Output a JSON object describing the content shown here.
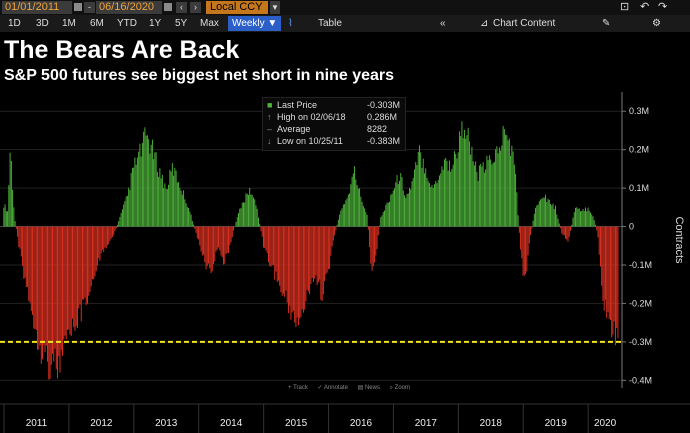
{
  "toolbar": {
    "start_date": "01/01/2011",
    "end_date": "06/16/2020",
    "currency": "Local CCY",
    "timeframes": [
      "1D",
      "3D",
      "1M",
      "6M",
      "YTD",
      "1Y",
      "5Y",
      "Max"
    ],
    "frequency": "Weekly ▼",
    "table_label": "Table",
    "chart_content_label": "Chart Content"
  },
  "header": {
    "title": "The Bears Are Back",
    "subtitle": "S&P 500 futures see biggest net short in nine years"
  },
  "legend": {
    "rows": [
      {
        "label": "Last Price",
        "value": "-0.303M"
      },
      {
        "label": "High on 02/06/18",
        "value": "0.286M"
      },
      {
        "label": "Average",
        "value": "8282"
      },
      {
        "label": "Low on 10/25/11",
        "value": "-0.383M"
      }
    ]
  },
  "controls": [
    "Track",
    "Annotate",
    "News",
    "Zoom"
  ],
  "chart_data": {
    "type": "bar",
    "ylabel": "Contracts",
    "ylim": [
      -0.42,
      0.35
    ],
    "yunit": "M",
    "ytick_labels": [
      "0.3M",
      "0.2M",
      "0.1M",
      "0",
      "-0.1M",
      "-0.2M",
      "-0.3M",
      "-0.4M"
    ],
    "ytick_values": [
      0.3,
      0.2,
      0.1,
      0,
      -0.1,
      -0.2,
      -0.3,
      -0.4
    ],
    "xtick_labels": [
      "2011",
      "2012",
      "2013",
      "2014",
      "2015",
      "2016",
      "2017",
      "2018",
      "2019",
      "2020"
    ],
    "reference_line": -0.3,
    "colors": {
      "positive": "#4fb53b",
      "negative": "#e23222",
      "reference": "#f2e61b"
    },
    "x_start": 2011.0,
    "x_end": 2020.46,
    "values": [
      {
        "x": 2011.0,
        "v": 0.06
      },
      {
        "x": 2011.06,
        "v": 0.04
      },
      {
        "x": 2011.1,
        "v": 0.22
      },
      {
        "x": 2011.16,
        "v": 0.03
      },
      {
        "x": 2011.22,
        "v": -0.04
      },
      {
        "x": 2011.3,
        "v": -0.12
      },
      {
        "x": 2011.4,
        "v": -0.2
      },
      {
        "x": 2011.5,
        "v": -0.28
      },
      {
        "x": 2011.6,
        "v": -0.34
      },
      {
        "x": 2011.72,
        "v": -0.37
      },
      {
        "x": 2011.82,
        "v": -0.383
      },
      {
        "x": 2011.95,
        "v": -0.33
      },
      {
        "x": 2012.1,
        "v": -0.26
      },
      {
        "x": 2012.25,
        "v": -0.22
      },
      {
        "x": 2012.4,
        "v": -0.12
      },
      {
        "x": 2012.55,
        "v": -0.06
      },
      {
        "x": 2012.7,
        "v": -0.02
      },
      {
        "x": 2012.8,
        "v": 0.03
      },
      {
        "x": 2012.9,
        "v": 0.08
      },
      {
        "x": 2013.0,
        "v": 0.16
      },
      {
        "x": 2013.1,
        "v": 0.2
      },
      {
        "x": 2013.2,
        "v": 0.25
      },
      {
        "x": 2013.3,
        "v": 0.2
      },
      {
        "x": 2013.4,
        "v": 0.15
      },
      {
        "x": 2013.5,
        "v": 0.1
      },
      {
        "x": 2013.6,
        "v": 0.16
      },
      {
        "x": 2013.7,
        "v": 0.12
      },
      {
        "x": 2013.85,
        "v": 0.05
      },
      {
        "x": 2014.0,
        "v": -0.04
      },
      {
        "x": 2014.1,
        "v": -0.1
      },
      {
        "x": 2014.2,
        "v": -0.12
      },
      {
        "x": 2014.3,
        "v": -0.06
      },
      {
        "x": 2014.4,
        "v": -0.1
      },
      {
        "x": 2014.5,
        "v": -0.04
      },
      {
        "x": 2014.6,
        "v": 0.03
      },
      {
        "x": 2014.7,
        "v": 0.07
      },
      {
        "x": 2014.8,
        "v": 0.1
      },
      {
        "x": 2014.9,
        "v": 0.05
      },
      {
        "x": 2015.0,
        "v": -0.05
      },
      {
        "x": 2015.1,
        "v": -0.1
      },
      {
        "x": 2015.2,
        "v": -0.14
      },
      {
        "x": 2015.3,
        "v": -0.18
      },
      {
        "x": 2015.4,
        "v": -0.22
      },
      {
        "x": 2015.5,
        "v": -0.26
      },
      {
        "x": 2015.6,
        "v": -0.23
      },
      {
        "x": 2015.7,
        "v": -0.18
      },
      {
        "x": 2015.8,
        "v": -0.14
      },
      {
        "x": 2015.9,
        "v": -0.18
      },
      {
        "x": 2016.0,
        "v": -0.12
      },
      {
        "x": 2016.1,
        "v": -0.02
      },
      {
        "x": 2016.2,
        "v": 0.05
      },
      {
        "x": 2016.3,
        "v": 0.08
      },
      {
        "x": 2016.4,
        "v": 0.15
      },
      {
        "x": 2016.5,
        "v": 0.08
      },
      {
        "x": 2016.6,
        "v": 0.03
      },
      {
        "x": 2016.65,
        "v": -0.1
      },
      {
        "x": 2016.7,
        "v": -0.13
      },
      {
        "x": 2016.8,
        "v": 0.02
      },
      {
        "x": 2016.9,
        "v": 0.06
      },
      {
        "x": 2017.0,
        "v": 0.1
      },
      {
        "x": 2017.1,
        "v": 0.14
      },
      {
        "x": 2017.2,
        "v": 0.08
      },
      {
        "x": 2017.3,
        "v": 0.12
      },
      {
        "x": 2017.4,
        "v": 0.2
      },
      {
        "x": 2017.5,
        "v": 0.16
      },
      {
        "x": 2017.6,
        "v": 0.1
      },
      {
        "x": 2017.7,
        "v": 0.14
      },
      {
        "x": 2017.8,
        "v": 0.18
      },
      {
        "x": 2017.9,
        "v": 0.16
      },
      {
        "x": 2018.0,
        "v": 0.22
      },
      {
        "x": 2018.1,
        "v": 0.286
      },
      {
        "x": 2018.2,
        "v": 0.2
      },
      {
        "x": 2018.3,
        "v": 0.14
      },
      {
        "x": 2018.4,
        "v": 0.16
      },
      {
        "x": 2018.5,
        "v": 0.18
      },
      {
        "x": 2018.6,
        "v": 0.2
      },
      {
        "x": 2018.7,
        "v": 0.25
      },
      {
        "x": 2018.8,
        "v": 0.23
      },
      {
        "x": 2018.88,
        "v": 0.15
      },
      {
        "x": 2018.95,
        "v": -0.04
      },
      {
        "x": 2019.0,
        "v": -0.12
      },
      {
        "x": 2019.05,
        "v": -0.13
      },
      {
        "x": 2019.1,
        "v": -0.04
      },
      {
        "x": 2019.2,
        "v": 0.06
      },
      {
        "x": 2019.3,
        "v": 0.09
      },
      {
        "x": 2019.4,
        "v": 0.07
      },
      {
        "x": 2019.5,
        "v": 0.05
      },
      {
        "x": 2019.6,
        "v": -0.02
      },
      {
        "x": 2019.7,
        "v": -0.04
      },
      {
        "x": 2019.8,
        "v": 0.05
      },
      {
        "x": 2019.9,
        "v": 0.04
      },
      {
        "x": 2020.0,
        "v": 0.05
      },
      {
        "x": 2020.08,
        "v": 0.03
      },
      {
        "x": 2020.15,
        "v": -0.02
      },
      {
        "x": 2020.22,
        "v": -0.18
      },
      {
        "x": 2020.3,
        "v": -0.26
      },
      {
        "x": 2020.38,
        "v": -0.29
      },
      {
        "x": 2020.46,
        "v": -0.303
      }
    ]
  }
}
